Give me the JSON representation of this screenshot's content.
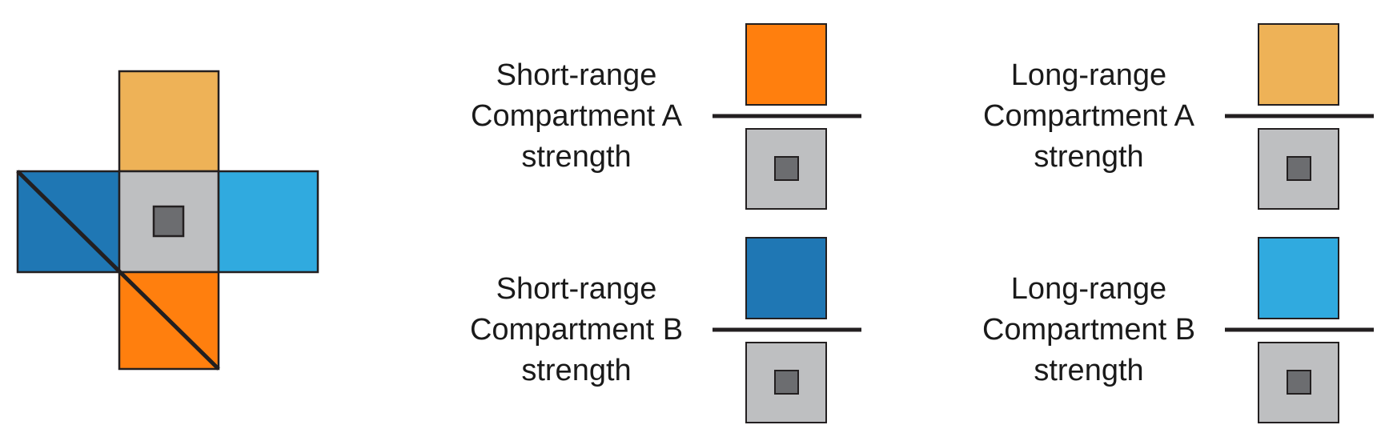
{
  "colors": {
    "short_range_a": "#FF7F0E",
    "long_range_a": "#EEB257",
    "short_range_b": "#1F77B4",
    "long_range_b": "#30AADF",
    "center_cell": "#BEBFC1",
    "center_core": "#6C6D70",
    "outline": "#231F20",
    "text": "#1A1A1A"
  },
  "ratios": [
    {
      "id": "short-range-compartment-a",
      "label_lines": [
        "Short-range",
        "Compartment A",
        "strength"
      ],
      "numerator": "short_range_a"
    },
    {
      "id": "long-range-compartment-a",
      "label_lines": [
        "Long-range",
        "Compartment A",
        "strength"
      ],
      "numerator": "long_range_a"
    },
    {
      "id": "short-range-compartment-b",
      "label_lines": [
        "Short-range",
        "Compartment B",
        "strength"
      ],
      "numerator": "short_range_b"
    },
    {
      "id": "long-range-compartment-b",
      "label_lines": [
        "Long-range",
        "Compartment B",
        "strength"
      ],
      "numerator": "long_range_b"
    }
  ]
}
